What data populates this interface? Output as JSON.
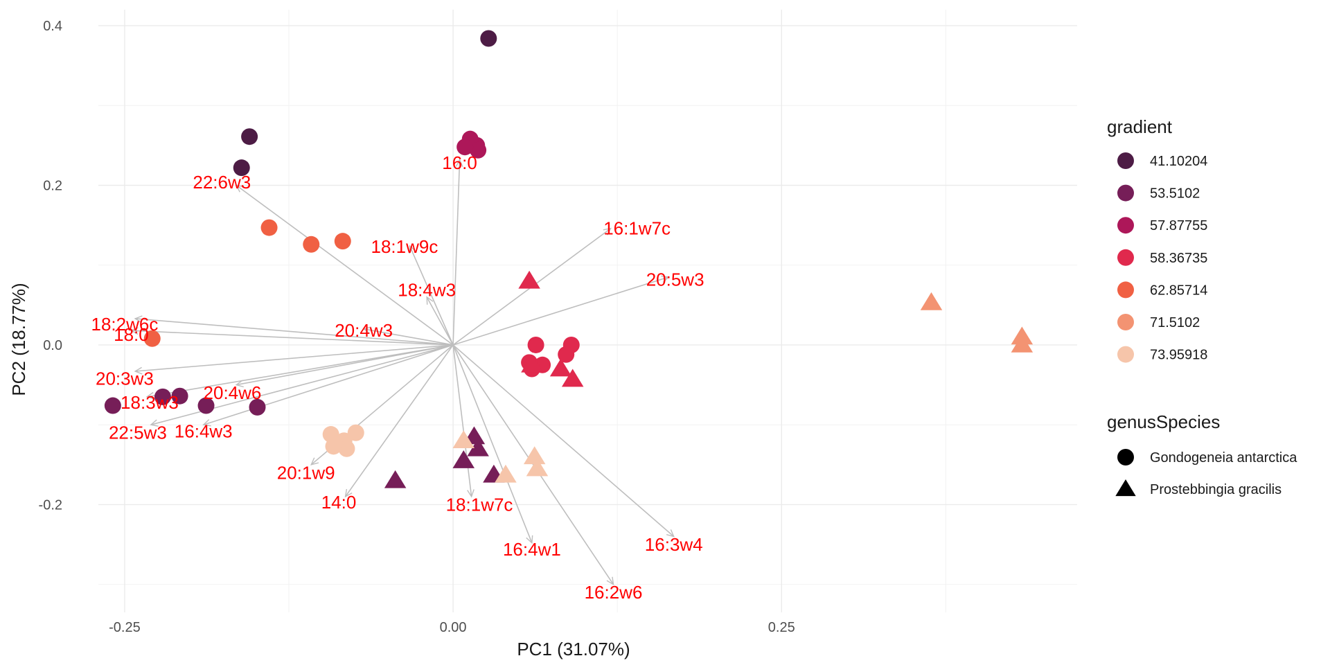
{
  "chart_data": {
    "type": "scatter",
    "xlabel": "PC1 (31.07%)",
    "ylabel": "PC2 (18.77%)",
    "xlim": [
      -0.27,
      0.475
    ],
    "ylim": [
      -0.335,
      0.42
    ],
    "x_ticks": [
      {
        "value": -0.25,
        "label": "-0.25"
      },
      {
        "value": 0.0,
        "label": "0.00"
      },
      {
        "value": 0.25,
        "label": "0.25"
      }
    ],
    "y_ticks": [
      {
        "value": 0.4,
        "label": "0.4"
      },
      {
        "value": 0.2,
        "label": "0.2"
      },
      {
        "value": 0.0,
        "label": "0.0"
      },
      {
        "value": -0.2,
        "label": "-0.2"
      }
    ],
    "grid": true,
    "colors": {
      "41.10204": "#4d1c45",
      "53.5102": "#761e58",
      "57.87755": "#ad1759",
      "58.36735": "#e0294d",
      "62.85714": "#f06043",
      "71.5102": "#f39372",
      "73.95918": "#f6c5aa"
    },
    "points": [
      {
        "x": 0.027,
        "y": 0.384,
        "gradient": "41.10204",
        "genusSpecies": "Gondogeneia antarctica"
      },
      {
        "x": -0.155,
        "y": 0.261,
        "gradient": "41.10204",
        "genusSpecies": "Gondogeneia antarctica"
      },
      {
        "x": -0.161,
        "y": 0.222,
        "gradient": "41.10204",
        "genusSpecies": "Gondogeneia antarctica"
      },
      {
        "x": 0.012,
        "y": 0.25,
        "gradient": "57.87755",
        "genusSpecies": "Gondogeneia antarctica"
      },
      {
        "x": 0.018,
        "y": 0.25,
        "gradient": "57.87755",
        "genusSpecies": "Gondogeneia antarctica"
      },
      {
        "x": 0.013,
        "y": 0.258,
        "gradient": "57.87755",
        "genusSpecies": "Gondogeneia antarctica"
      },
      {
        "x": 0.019,
        "y": 0.244,
        "gradient": "57.87755",
        "genusSpecies": "Gondogeneia antarctica"
      },
      {
        "x": 0.009,
        "y": 0.248,
        "gradient": "57.87755",
        "genusSpecies": "Gondogeneia antarctica"
      },
      {
        "x": -0.14,
        "y": 0.147,
        "gradient": "62.85714",
        "genusSpecies": "Gondogeneia antarctica"
      },
      {
        "x": -0.108,
        "y": 0.126,
        "gradient": "62.85714",
        "genusSpecies": "Gondogeneia antarctica"
      },
      {
        "x": -0.084,
        "y": 0.13,
        "gradient": "62.85714",
        "genusSpecies": "Gondogeneia antarctica"
      },
      {
        "x": -0.229,
        "y": 0.008,
        "gradient": "62.85714",
        "genusSpecies": "Gondogeneia antarctica"
      },
      {
        "x": -0.259,
        "y": -0.076,
        "gradient": "53.5102",
        "genusSpecies": "Gondogeneia antarctica"
      },
      {
        "x": -0.221,
        "y": -0.065,
        "gradient": "53.5102",
        "genusSpecies": "Gondogeneia antarctica"
      },
      {
        "x": -0.208,
        "y": -0.064,
        "gradient": "53.5102",
        "genusSpecies": "Gondogeneia antarctica"
      },
      {
        "x": -0.188,
        "y": -0.076,
        "gradient": "53.5102",
        "genusSpecies": "Gondogeneia antarctica"
      },
      {
        "x": -0.149,
        "y": -0.078,
        "gradient": "53.5102",
        "genusSpecies": "Gondogeneia antarctica"
      },
      {
        "x": 0.063,
        "y": 0.0,
        "gradient": "58.36735",
        "genusSpecies": "Gondogeneia antarctica"
      },
      {
        "x": 0.09,
        "y": 0.0,
        "gradient": "58.36735",
        "genusSpecies": "Gondogeneia antarctica"
      },
      {
        "x": 0.086,
        "y": -0.012,
        "gradient": "58.36735",
        "genusSpecies": "Gondogeneia antarctica"
      },
      {
        "x": 0.068,
        "y": -0.025,
        "gradient": "58.36735",
        "genusSpecies": "Gondogeneia antarctica"
      },
      {
        "x": 0.058,
        "y": -0.022,
        "gradient": "58.36735",
        "genusSpecies": "Gondogeneia antarctica"
      },
      {
        "x": 0.06,
        "y": -0.03,
        "gradient": "58.36735",
        "genusSpecies": "Gondogeneia antarctica"
      },
      {
        "x": -0.093,
        "y": -0.112,
        "gradient": "73.95918",
        "genusSpecies": "Gondogeneia antarctica"
      },
      {
        "x": -0.083,
        "y": -0.12,
        "gradient": "73.95918",
        "genusSpecies": "Gondogeneia antarctica"
      },
      {
        "x": -0.074,
        "y": -0.11,
        "gradient": "73.95918",
        "genusSpecies": "Gondogeneia antarctica"
      },
      {
        "x": -0.081,
        "y": -0.13,
        "gradient": "73.95918",
        "genusSpecies": "Gondogeneia antarctica"
      },
      {
        "x": -0.091,
        "y": -0.127,
        "gradient": "73.95918",
        "genusSpecies": "Gondogeneia antarctica"
      },
      {
        "x": 0.058,
        "y": 0.08,
        "gradient": "58.36735",
        "genusSpecies": "Prostebbingia gracilis"
      },
      {
        "x": 0.06,
        "y": -0.025,
        "gradient": "58.36735",
        "genusSpecies": "Prostebbingia gracilis"
      },
      {
        "x": 0.082,
        "y": -0.03,
        "gradient": "58.36735",
        "genusSpecies": "Prostebbingia gracilis"
      },
      {
        "x": 0.091,
        "y": -0.043,
        "gradient": "58.36735",
        "genusSpecies": "Prostebbingia gracilis"
      },
      {
        "x": 0.364,
        "y": 0.053,
        "gradient": "71.5102",
        "genusSpecies": "Prostebbingia gracilis"
      },
      {
        "x": 0.433,
        "y": 0.01,
        "gradient": "71.5102",
        "genusSpecies": "Prostebbingia gracilis"
      },
      {
        "x": 0.433,
        "y": 0.0,
        "gradient": "71.5102",
        "genusSpecies": "Prostebbingia gracilis"
      },
      {
        "x": 0.016,
        "y": -0.115,
        "gradient": "53.5102",
        "genusSpecies": "Prostebbingia gracilis"
      },
      {
        "x": 0.019,
        "y": -0.13,
        "gradient": "53.5102",
        "genusSpecies": "Prostebbingia gracilis"
      },
      {
        "x": 0.008,
        "y": -0.145,
        "gradient": "53.5102",
        "genusSpecies": "Prostebbingia gracilis"
      },
      {
        "x": 0.031,
        "y": -0.163,
        "gradient": "53.5102",
        "genusSpecies": "Prostebbingia gracilis"
      },
      {
        "x": -0.044,
        "y": -0.17,
        "gradient": "53.5102",
        "genusSpecies": "Prostebbingia gracilis"
      },
      {
        "x": 0.008,
        "y": -0.12,
        "gradient": "73.95918",
        "genusSpecies": "Prostebbingia gracilis"
      },
      {
        "x": 0.04,
        "y": -0.163,
        "gradient": "73.95918",
        "genusSpecies": "Prostebbingia gracilis"
      },
      {
        "x": 0.062,
        "y": -0.14,
        "gradient": "73.95918",
        "genusSpecies": "Prostebbingia gracilis"
      },
      {
        "x": 0.064,
        "y": -0.155,
        "gradient": "73.95918",
        "genusSpecies": "Prostebbingia gracilis"
      }
    ],
    "loadings": [
      {
        "label": "16:0",
        "x": 0.005,
        "y": 0.232,
        "lx": 0.005,
        "ly": 0.228
      },
      {
        "label": "22:6w3",
        "x": -0.165,
        "y": 0.2,
        "lx": -0.176,
        "ly": 0.204
      },
      {
        "label": "16:1w7c",
        "x": 0.12,
        "y": 0.146,
        "lx": 0.14,
        "ly": 0.146
      },
      {
        "label": "18:1w9c",
        "x": -0.033,
        "y": 0.124,
        "lx": -0.037,
        "ly": 0.123
      },
      {
        "label": "20:5w3",
        "x": 0.164,
        "y": 0.085,
        "lx": 0.169,
        "ly": 0.082
      },
      {
        "label": "18:4w3",
        "x": -0.02,
        "y": 0.06,
        "lx": -0.02,
        "ly": 0.069
      },
      {
        "label": "18:2w6c",
        "x": -0.242,
        "y": 0.033,
        "lx": -0.25,
        "ly": 0.026
      },
      {
        "label": "18:0",
        "x": -0.245,
        "y": 0.018,
        "lx": -0.245,
        "ly": 0.013
      },
      {
        "label": "20:4w3",
        "x": -0.068,
        "y": 0.02,
        "lx": -0.068,
        "ly": 0.018
      },
      {
        "label": "20:3w3",
        "x": -0.242,
        "y": -0.033,
        "lx": -0.25,
        "ly": -0.042
      },
      {
        "label": "18:3w3",
        "x": -0.233,
        "y": -0.065,
        "lx": -0.231,
        "ly": -0.072
      },
      {
        "label": "20:4w6",
        "x": -0.165,
        "y": -0.05,
        "lx": -0.168,
        "ly": -0.06
      },
      {
        "label": "22:5w3",
        "x": -0.23,
        "y": -0.1,
        "lx": -0.24,
        "ly": -0.11
      },
      {
        "label": "16:4w3",
        "x": -0.19,
        "y": -0.1,
        "lx": -0.19,
        "ly": -0.108
      },
      {
        "label": "20:1w9",
        "x": -0.108,
        "y": -0.15,
        "lx": -0.112,
        "ly": -0.16
      },
      {
        "label": "14:0",
        "x": -0.082,
        "y": -0.19,
        "lx": -0.087,
        "ly": -0.197
      },
      {
        "label": "18:1w7c",
        "x": 0.014,
        "y": -0.19,
        "lx": 0.02,
        "ly": -0.2
      },
      {
        "label": "16:4w1",
        "x": 0.06,
        "y": -0.248,
        "lx": 0.06,
        "ly": -0.256
      },
      {
        "label": "16:3w4",
        "x": 0.168,
        "y": -0.24,
        "lx": 0.168,
        "ly": -0.25
      },
      {
        "label": "16:2w6",
        "x": 0.122,
        "y": -0.3,
        "lx": 0.122,
        "ly": -0.31
      }
    ],
    "legend": {
      "placement": "right",
      "gradient_title": "gradient",
      "gradient_items": [
        "41.10204",
        "53.5102",
        "57.87755",
        "58.36735",
        "62.85714",
        "71.5102",
        "73.95918"
      ],
      "shape_title": "genusSpecies",
      "shape_items": [
        {
          "label": "Gondogeneia antarctica",
          "shape": "circle"
        },
        {
          "label": "Prostebbingia gracilis",
          "shape": "triangle"
        }
      ]
    }
  }
}
